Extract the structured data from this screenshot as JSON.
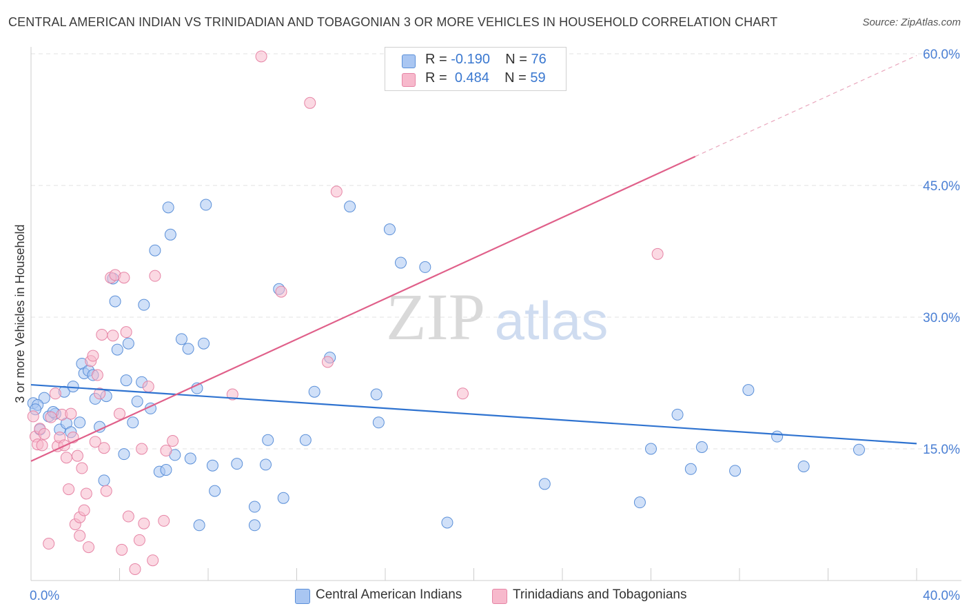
{
  "title": "CENTRAL AMERICAN INDIAN VS TRINIDADIAN AND TOBAGONIAN 3 OR MORE VEHICLES IN HOUSEHOLD CORRELATION CHART",
  "source": "Source: ZipAtlas.com",
  "watermark": {
    "zip": "ZIP",
    "atlas": "atlas"
  },
  "legend": {
    "r_label": "R =",
    "n_label": "N =",
    "series": [
      {
        "r": "-0.190",
        "n": "76",
        "color": "#a9c6f2",
        "edge": "#5a8fd8"
      },
      {
        "r": "0.484",
        "n": "59",
        "color": "#f7b9cc",
        "edge": "#e684a5"
      }
    ]
  },
  "bottom_legend": [
    "Central American Indians",
    "Trinidadians and Tobagonians"
  ],
  "chart_data": {
    "type": "scatter",
    "xlabel": "",
    "ylabel": "3 or more Vehicles in Household",
    "xlim": [
      0,
      40
    ],
    "ylim": [
      0,
      60
    ],
    "x_tick_labels": [
      "0.0%",
      "40.0%"
    ],
    "y_ticks": [
      15,
      30,
      45,
      60
    ],
    "y_tick_labels": [
      "15.0%",
      "30.0%",
      "45.0%",
      "60.0%"
    ],
    "grid": true,
    "series": [
      {
        "name": "Central American Indians",
        "color": "#a9c6f2",
        "edge": "#5a8fd8",
        "trend": {
          "x1": 0,
          "y1": 22.3,
          "x2": 40,
          "y2": 15.6,
          "color": "#2f73d0"
        },
        "points": [
          [
            0.1,
            20.2
          ],
          [
            0.4,
            17.2
          ],
          [
            0.6,
            20.8
          ],
          [
            0.8,
            18.7
          ],
          [
            1.1,
            19.0
          ],
          [
            1.3,
            17.2
          ],
          [
            1.5,
            21.5
          ],
          [
            1.6,
            17.9
          ],
          [
            1.8,
            16.9
          ],
          [
            1.9,
            22.1
          ],
          [
            2.2,
            18.0
          ],
          [
            2.3,
            24.7
          ],
          [
            2.4,
            23.6
          ],
          [
            2.6,
            23.9
          ],
          [
            2.8,
            23.4
          ],
          [
            2.9,
            20.7
          ],
          [
            3.1,
            17.5
          ],
          [
            3.3,
            11.4
          ],
          [
            3.4,
            21.0
          ],
          [
            3.7,
            34.4
          ],
          [
            3.8,
            31.8
          ],
          [
            3.9,
            26.3
          ],
          [
            4.2,
            14.4
          ],
          [
            4.3,
            22.8
          ],
          [
            4.4,
            27.0
          ],
          [
            4.6,
            18.0
          ],
          [
            4.8,
            20.4
          ],
          [
            5.0,
            22.6
          ],
          [
            5.1,
            31.4
          ],
          [
            5.4,
            19.6
          ],
          [
            5.6,
            37.6
          ],
          [
            5.8,
            12.4
          ],
          [
            6.1,
            12.6
          ],
          [
            6.3,
            39.4
          ],
          [
            6.2,
            42.5
          ],
          [
            6.5,
            14.3
          ],
          [
            6.8,
            27.5
          ],
          [
            7.2,
            13.9
          ],
          [
            7.1,
            26.4
          ],
          [
            7.5,
            21.9
          ],
          [
            7.6,
            6.3
          ],
          [
            7.8,
            27.0
          ],
          [
            7.9,
            42.8
          ],
          [
            8.2,
            13.1
          ],
          [
            8.3,
            10.2
          ],
          [
            9.3,
            13.3
          ],
          [
            10.1,
            8.4
          ],
          [
            10.1,
            6.3
          ],
          [
            10.6,
            13.2
          ],
          [
            10.7,
            16.0
          ],
          [
            11.2,
            33.2
          ],
          [
            11.4,
            9.4
          ],
          [
            12.4,
            16.0
          ],
          [
            12.8,
            21.5
          ],
          [
            13.5,
            25.4
          ],
          [
            14.4,
            42.6
          ],
          [
            15.6,
            21.2
          ],
          [
            15.7,
            18.0
          ],
          [
            16.2,
            40.0
          ],
          [
            16.7,
            36.2
          ],
          [
            17.8,
            35.7
          ],
          [
            18.8,
            6.6
          ],
          [
            23.2,
            11.0
          ],
          [
            27.5,
            8.9
          ],
          [
            28.0,
            15.0
          ],
          [
            29.2,
            18.9
          ],
          [
            29.8,
            12.7
          ],
          [
            30.3,
            15.2
          ],
          [
            31.8,
            12.5
          ],
          [
            32.4,
            21.7
          ],
          [
            33.7,
            16.4
          ],
          [
            34.9,
            13.0
          ],
          [
            37.4,
            14.9
          ],
          [
            0.3,
            20.0
          ],
          [
            0.2,
            19.5
          ],
          [
            1.0,
            19.2
          ]
        ]
      },
      {
        "name": "Trinidadians and Tobagonians",
        "color": "#f7b9cc",
        "edge": "#e684a5",
        "trend": {
          "x1": 0,
          "y1": 13.6,
          "x2": 30.0,
          "y2": 48.3,
          "x3": 40,
          "y3": 59.8,
          "color": "#e0608a"
        },
        "points": [
          [
            0.1,
            18.7
          ],
          [
            0.2,
            16.4
          ],
          [
            0.3,
            15.5
          ],
          [
            0.4,
            17.3
          ],
          [
            0.5,
            15.4
          ],
          [
            0.6,
            16.7
          ],
          [
            0.8,
            4.2
          ],
          [
            0.9,
            18.6
          ],
          [
            1.1,
            21.3
          ],
          [
            1.2,
            15.3
          ],
          [
            1.3,
            16.3
          ],
          [
            1.4,
            18.9
          ],
          [
            1.5,
            15.4
          ],
          [
            1.6,
            14.0
          ],
          [
            1.7,
            10.4
          ],
          [
            1.8,
            19.0
          ],
          [
            1.9,
            16.3
          ],
          [
            2.0,
            6.4
          ],
          [
            2.1,
            14.2
          ],
          [
            2.2,
            5.1
          ],
          [
            2.2,
            7.2
          ],
          [
            2.3,
            12.8
          ],
          [
            2.4,
            8.0
          ],
          [
            2.5,
            9.9
          ],
          [
            2.6,
            3.8
          ],
          [
            2.7,
            25.0
          ],
          [
            2.8,
            25.6
          ],
          [
            2.9,
            15.8
          ],
          [
            3.0,
            23.4
          ],
          [
            3.1,
            21.3
          ],
          [
            3.2,
            28.0
          ],
          [
            3.3,
            15.1
          ],
          [
            3.4,
            10.2
          ],
          [
            3.6,
            34.5
          ],
          [
            3.7,
            27.9
          ],
          [
            3.8,
            34.8
          ],
          [
            4.0,
            19.0
          ],
          [
            4.1,
            3.5
          ],
          [
            4.2,
            34.5
          ],
          [
            4.3,
            28.3
          ],
          [
            4.4,
            7.3
          ],
          [
            4.7,
            1.3
          ],
          [
            4.9,
            4.6
          ],
          [
            5.0,
            15.0
          ],
          [
            5.1,
            6.5
          ],
          [
            5.3,
            22.1
          ],
          [
            5.5,
            2.3
          ],
          [
            5.6,
            34.7
          ],
          [
            6.0,
            6.8
          ],
          [
            6.1,
            14.8
          ],
          [
            6.4,
            15.9
          ],
          [
            9.1,
            21.2
          ],
          [
            10.4,
            59.7
          ],
          [
            11.3,
            32.9
          ],
          [
            12.6,
            54.4
          ],
          [
            13.4,
            24.9
          ],
          [
            13.8,
            44.3
          ],
          [
            19.5,
            21.3
          ],
          [
            28.3,
            37.2
          ]
        ]
      }
    ]
  }
}
